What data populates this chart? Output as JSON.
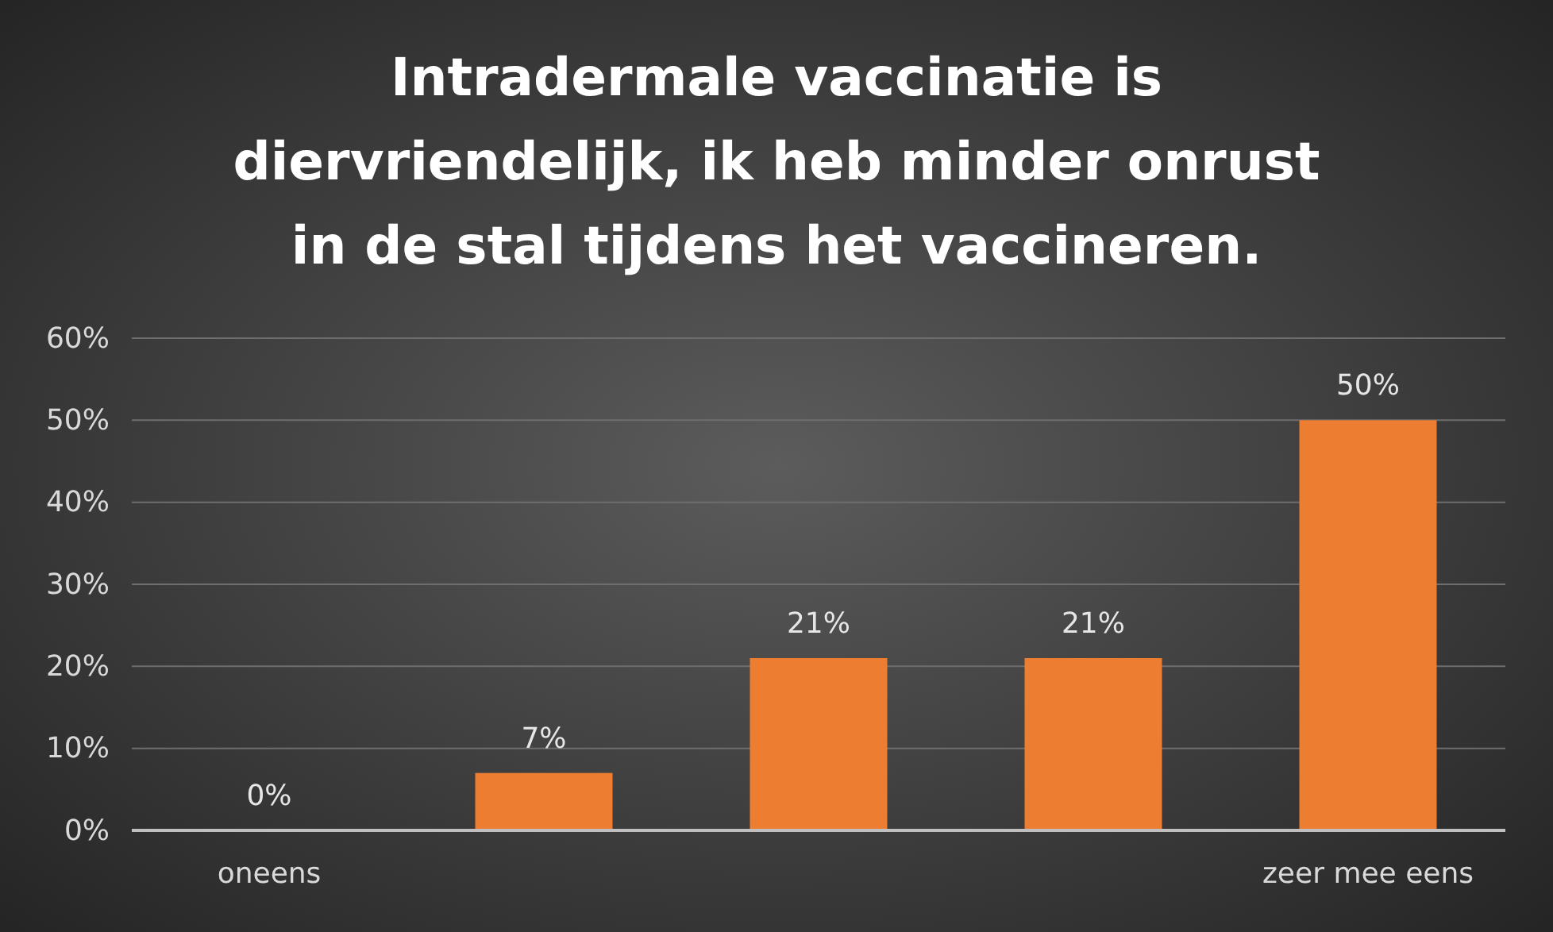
{
  "chart_data": {
    "type": "bar",
    "title": "Intradermale vaccinatie is diervriendelijk, ik heb minder onrust in de stal tijdens het vaccineren.",
    "categories": [
      "oneens",
      null,
      null,
      null,
      "zeer mee eens"
    ],
    "values": [
      0,
      7,
      21,
      21,
      50
    ],
    "color": "#ed7d31",
    "value_labels": [
      "0%",
      "7%",
      "21%",
      "21%",
      "50%"
    ],
    "ylim": [
      0,
      60
    ],
    "yticks": [
      {
        "value": 0,
        "label": "0%"
      },
      {
        "value": 10,
        "label": "10%"
      },
      {
        "value": 20,
        "label": "20%"
      },
      {
        "value": 30,
        "label": "30%"
      },
      {
        "value": 40,
        "label": "40%"
      },
      {
        "value": 50,
        "label": "50%"
      },
      {
        "value": 60,
        "label": "60%"
      }
    ],
    "grid": "y"
  }
}
